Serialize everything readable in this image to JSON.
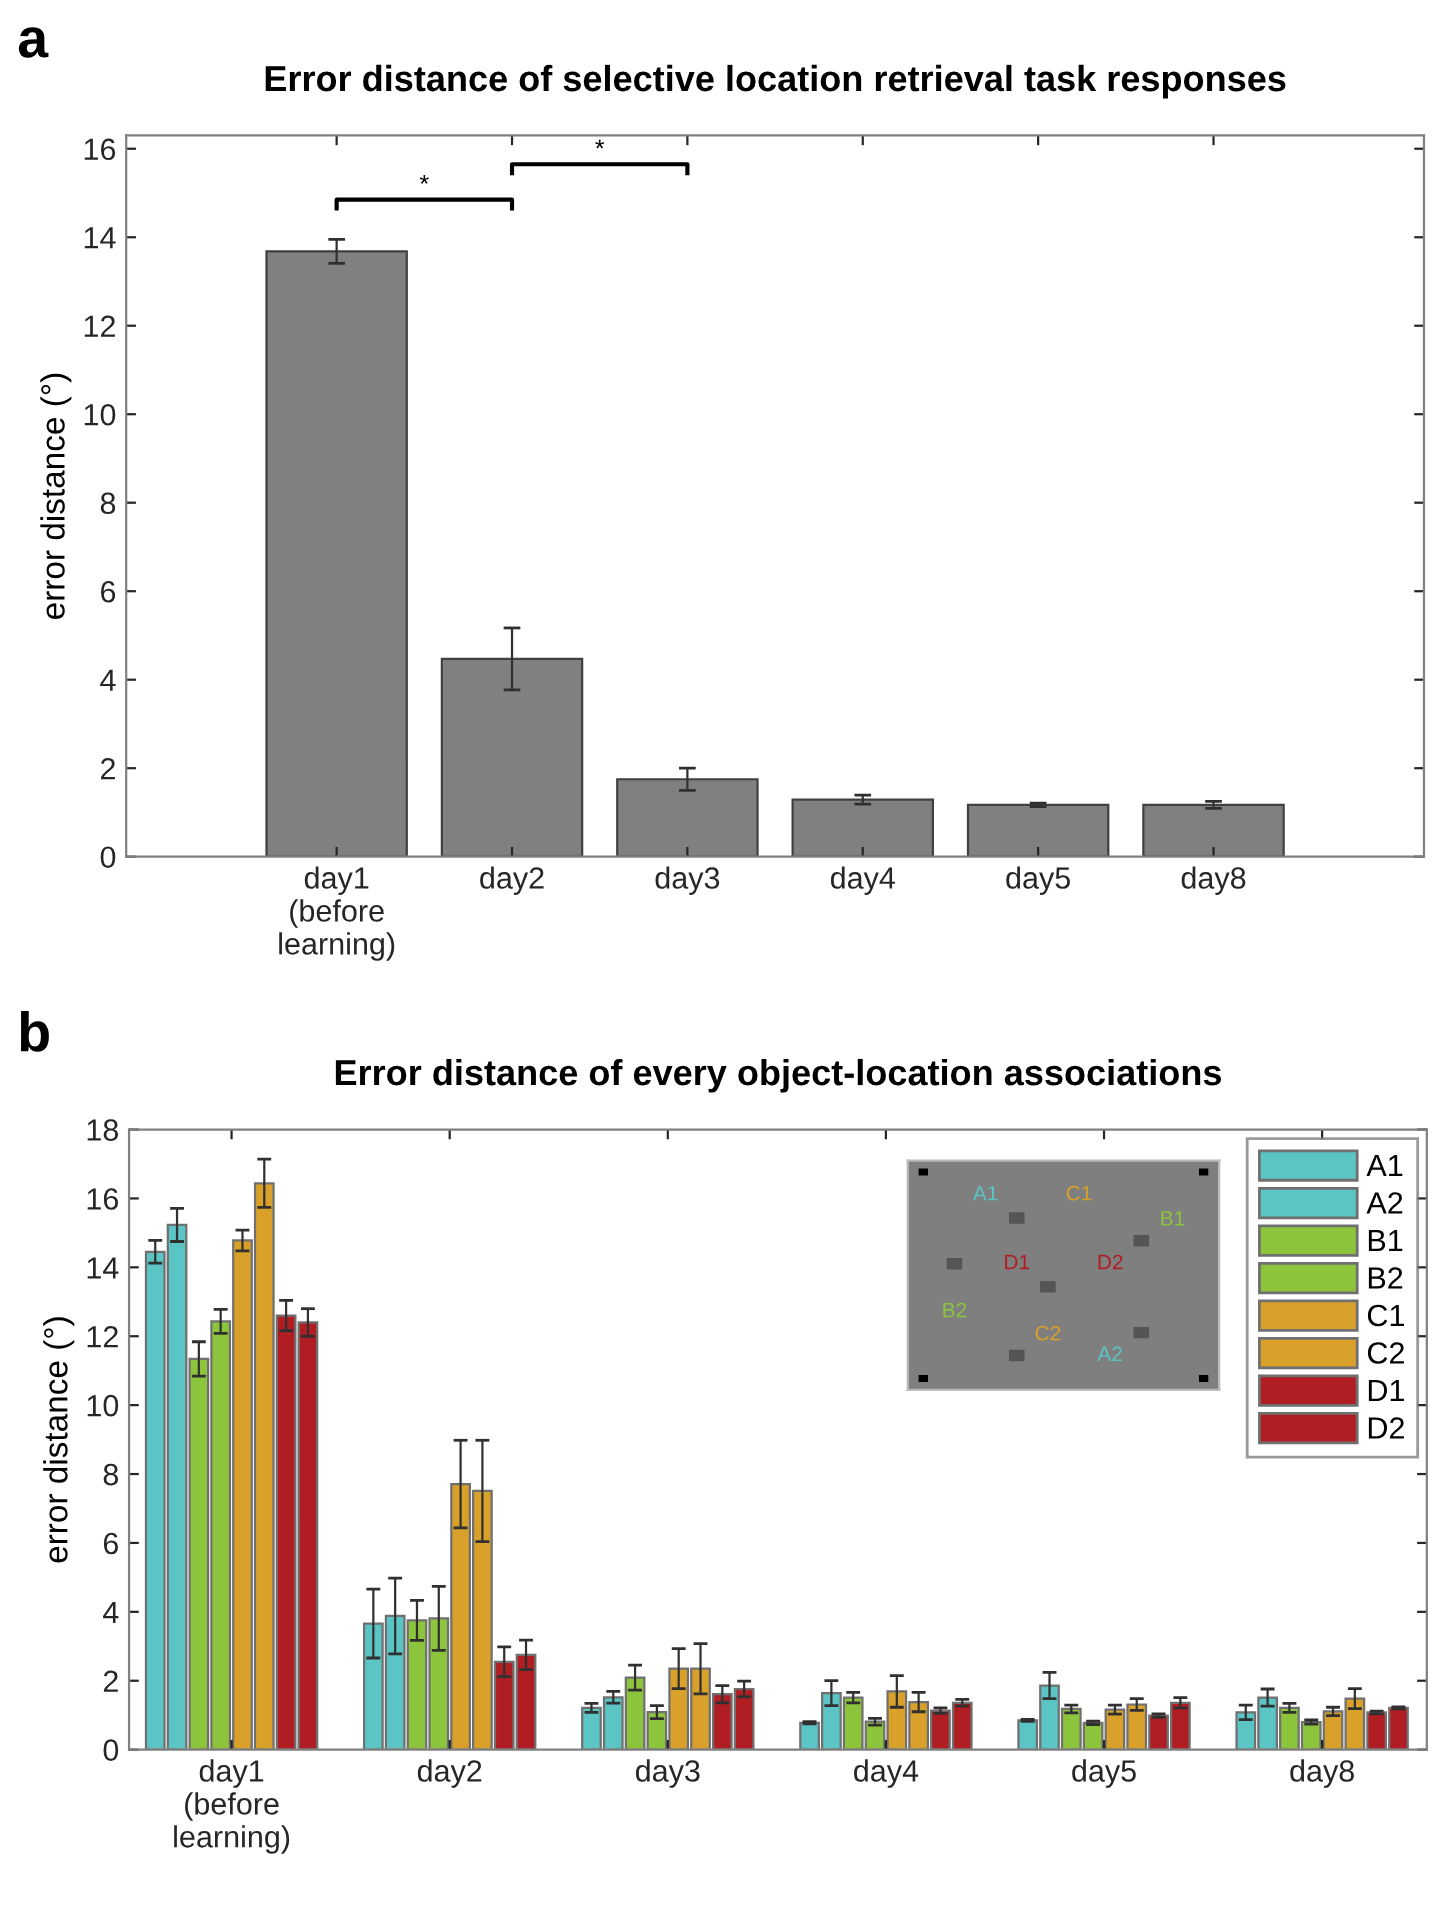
{
  "chart_data": [
    {
      "type": "bar",
      "title": "Error distance of selective location retrieval task responses",
      "ylabel": "error distance (°)",
      "categories": [
        "day1\n(before\nlearning)",
        "day2",
        "day3",
        "day4",
        "day5",
        "day8"
      ],
      "values": [
        13.68,
        4.47,
        1.75,
        1.29,
        1.17,
        1.17
      ],
      "errors": [
        0.27,
        0.7,
        0.25,
        0.1,
        0.04,
        0.08
      ],
      "color": "#808080",
      "ylim": [
        0,
        16.3
      ],
      "yticks": [
        0,
        2,
        4,
        6,
        8,
        10,
        12,
        14,
        16
      ],
      "grid": false,
      "annotations": [
        "a",
        "*",
        "*"
      ]
    },
    {
      "type": "bar",
      "title": "Error distance of every object-location associations",
      "ylabel": "error distance (°)",
      "categories": [
        "day1\n(before\nlearning)",
        "day2",
        "day3",
        "day4",
        "day5",
        "day8"
      ],
      "series": [
        {
          "name": "A1",
          "color": "#5bc4c4",
          "values": [
            14.45,
            3.66,
            1.21,
            0.78,
            0.85,
            1.08
          ],
          "errors": [
            0.33,
            1.0,
            0.13,
            0.03,
            0.03,
            0.21
          ]
        },
        {
          "name": "A2",
          "color": "#5bc4c4",
          "values": [
            15.23,
            3.88,
            1.52,
            1.64,
            1.86,
            1.51
          ],
          "errors": [
            0.48,
            1.1,
            0.17,
            0.36,
            0.38,
            0.25
          ]
        },
        {
          "name": "B1",
          "color": "#8cc43c",
          "values": [
            11.34,
            3.75,
            2.09,
            1.51,
            1.18,
            1.21
          ],
          "errors": [
            0.5,
            0.58,
            0.36,
            0.15,
            0.11,
            0.13
          ]
        },
        {
          "name": "B2",
          "color": "#8cc43c",
          "values": [
            12.43,
            3.81,
            1.09,
            0.81,
            0.78,
            0.8
          ],
          "errors": [
            0.35,
            0.93,
            0.19,
            0.1,
            0.05,
            0.06
          ]
        },
        {
          "name": "C1",
          "color": "#d9a02a",
          "values": [
            14.78,
            7.71,
            2.35,
            1.69,
            1.16,
            1.11
          ],
          "errors": [
            0.3,
            1.27,
            0.58,
            0.46,
            0.13,
            0.12
          ]
        },
        {
          "name": "C2",
          "color": "#d9a02a",
          "values": [
            16.44,
            7.51,
            2.35,
            1.38,
            1.31,
            1.48
          ],
          "errors": [
            0.7,
            1.47,
            0.73,
            0.28,
            0.17,
            0.29
          ]
        },
        {
          "name": "D1",
          "color": "#b01e24",
          "values": [
            12.6,
            2.55,
            1.61,
            1.13,
            0.99,
            1.08
          ],
          "errors": [
            0.44,
            0.43,
            0.25,
            0.08,
            0.05,
            0.04
          ]
        },
        {
          "name": "D2",
          "color": "#b01e24",
          "values": [
            12.4,
            2.75,
            1.76,
            1.36,
            1.36,
            1.21
          ],
          "errors": [
            0.4,
            0.43,
            0.23,
            0.1,
            0.15,
            0.03
          ]
        }
      ],
      "ylim": [
        0,
        18
      ],
      "yticks": [
        0,
        2,
        4,
        6,
        8,
        10,
        12,
        14,
        16,
        18
      ],
      "grid": false,
      "legend": "top right",
      "annotations": [
        "b",
        "A1",
        "C1",
        "B1",
        "D1",
        "D2",
        "B2",
        "C2",
        "A2"
      ]
    }
  ]
}
